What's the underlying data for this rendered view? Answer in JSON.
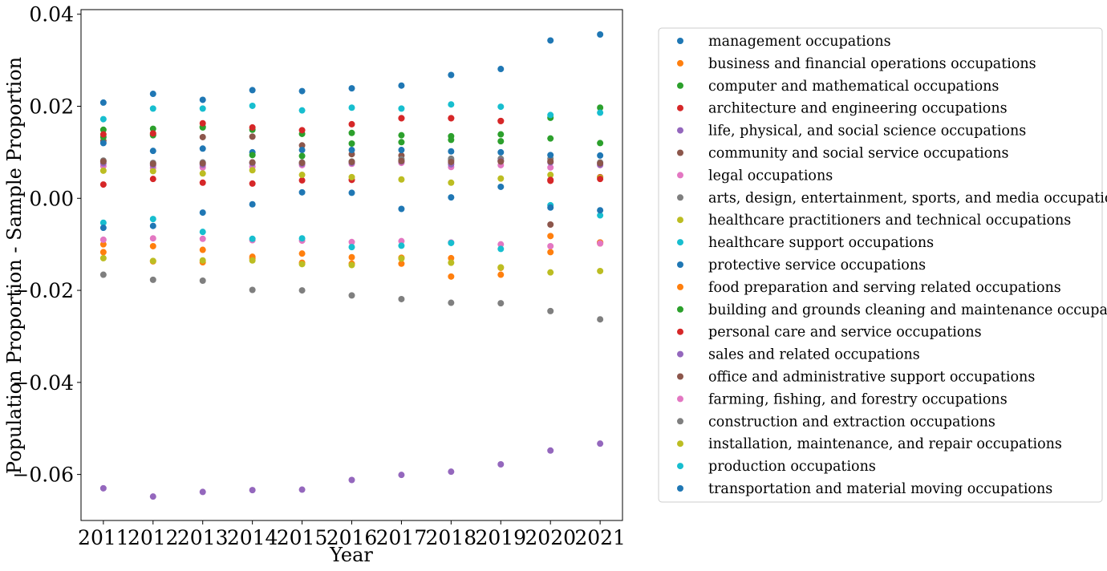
{
  "chart_data": {
    "type": "scatter",
    "title": "",
    "xlabel": "Year",
    "ylabel": "Population Proportion - Sample Proportion",
    "x": [
      2011,
      2012,
      2013,
      2014,
      2015,
      2016,
      2017,
      2018,
      2019,
      2020,
      2021
    ],
    "x_ticks": [
      "2011",
      "2012",
      "2013",
      "2014",
      "2015",
      "2016",
      "2017",
      "2018",
      "2019",
      "2020",
      "2021"
    ],
    "y_ticks": [
      "−0.06",
      "−0.04",
      "−0.02",
      "0.00",
      "0.02",
      "0.04"
    ],
    "y_tick_values": [
      -0.06,
      -0.04,
      -0.02,
      0.0,
      0.02,
      0.04
    ],
    "ylim": [
      -0.07,
      0.041
    ],
    "xlim": [
      2010.55,
      2021.45
    ],
    "grid": false,
    "legend_position": "right (outside plot)",
    "series": [
      {
        "name": "management occupations",
        "color": "#1f77b4",
        "values": [
          0.0208,
          0.0227,
          0.0214,
          0.0235,
          0.0233,
          0.0239,
          0.0245,
          0.0268,
          0.0281,
          0.0343,
          0.0356
        ]
      },
      {
        "name": "business and financial operations occupations",
        "color": "#ff7f0e",
        "values": [
          -0.01,
          -0.0104,
          -0.0112,
          -0.0127,
          -0.012,
          -0.0128,
          -0.0129,
          -0.013,
          -0.0151,
          -0.0082,
          -0.0098
        ]
      },
      {
        "name": "computer and mathematical occupations",
        "color": "#2ca02c",
        "values": [
          0.0149,
          0.0151,
          0.0154,
          0.0149,
          0.014,
          0.0142,
          0.0137,
          0.0135,
          0.0139,
          0.0175,
          0.0197
        ]
      },
      {
        "name": "architecture and engineering occupations",
        "color": "#d62728",
        "values": [
          0.003,
          0.0042,
          0.0034,
          0.0032,
          0.0039,
          0.004,
          0.0174,
          0.0174,
          0.0168,
          0.0038,
          0.0046
        ]
      },
      {
        "name": "life, physical, and social science occupations",
        "color": "#9467bd",
        "values": [
          -0.063,
          -0.0648,
          -0.0638,
          -0.0634,
          -0.0633,
          -0.0612,
          -0.0601,
          -0.0594,
          -0.0578,
          -0.0548,
          -0.0533
        ]
      },
      {
        "name": "community and social service occupations",
        "color": "#8c564b",
        "values": [
          0.0125,
          0.0139,
          0.0133,
          0.0134,
          0.0115,
          0.0096,
          0.0093,
          0.0083,
          0.0082,
          -0.0057,
          -0.0096
        ]
      },
      {
        "name": "legal occupations",
        "color": "#e377c2",
        "values": [
          0.007,
          0.0066,
          0.0067,
          0.0069,
          0.0072,
          0.0075,
          0.0077,
          0.0068,
          0.0072,
          0.0067,
          0.0072
        ]
      },
      {
        "name": "arts, design, entertainment, sports, and media occupations",
        "color": "#7f7f7f",
        "values": [
          0.0082,
          0.0077,
          0.0078,
          0.0078,
          0.0078,
          0.008,
          0.0085,
          0.0086,
          0.0086,
          0.0086,
          0.0078
        ]
      },
      {
        "name": "healthcare practitioners and technical occupations",
        "color": "#bcbd22",
        "values": [
          0.006,
          0.0059,
          0.0054,
          0.0061,
          0.0051,
          0.0046,
          0.0041,
          0.0034,
          0.0043,
          0.0051,
          0.0045
        ]
      },
      {
        "name": "healthcare support occupations",
        "color": "#17becf",
        "values": [
          0.0172,
          0.0195,
          0.0195,
          0.0201,
          0.0191,
          0.0197,
          0.0195,
          0.0204,
          0.0199,
          0.0181,
          0.0186
        ]
      },
      {
        "name": "protective service occupations",
        "color": "#1f77b4",
        "values": [
          0.012,
          0.0103,
          0.0108,
          0.01,
          0.0105,
          0.0105,
          0.0105,
          0.0102,
          0.01,
          0.0094,
          0.0093
        ]
      },
      {
        "name": "food preparation and serving related occupations",
        "color": "#ff7f0e",
        "values": [
          -0.0117,
          -0.0137,
          -0.0139,
          -0.0131,
          -0.014,
          -0.0142,
          -0.0142,
          -0.017,
          -0.0166,
          -0.0117,
          -0.0096
        ]
      },
      {
        "name": "building and grounds cleaning and maintenance occupations",
        "color": "#2ca02c",
        "values": [
          0.0133,
          0.0137,
          0.0155,
          0.0094,
          0.0092,
          0.0119,
          0.0122,
          0.0127,
          0.0124,
          0.013,
          0.012
        ]
      },
      {
        "name": "personal care and service occupations",
        "color": "#d62728",
        "values": [
          0.0139,
          0.0141,
          0.0163,
          0.0154,
          0.0148,
          0.0161,
          0.0174,
          0.0174,
          0.0168,
          0.004,
          0.0042
        ]
      },
      {
        "name": "sales and related occupations",
        "color": "#9467bd",
        "values": [
          0.0076,
          0.0072,
          0.0073,
          0.0076,
          0.0075,
          0.0077,
          0.008,
          0.0074,
          0.0081,
          0.0078,
          0.0073
        ]
      },
      {
        "name": "office and administrative support occupations",
        "color": "#8c564b",
        "values": [
          0.008,
          0.0075,
          0.0076,
          0.0078,
          0.0077,
          0.0079,
          0.0081,
          0.0079,
          0.008,
          0.008,
          0.0076
        ]
      },
      {
        "name": "farming, fishing, and forestry occupations",
        "color": "#e377c2",
        "values": [
          -0.009,
          -0.0087,
          -0.0088,
          -0.0091,
          -0.0092,
          -0.0095,
          -0.0093,
          -0.0096,
          -0.01,
          -0.0104,
          -0.0098
        ]
      },
      {
        "name": "construction and extraction occupations",
        "color": "#7f7f7f",
        "values": [
          -0.0166,
          -0.0177,
          -0.0179,
          -0.0199,
          -0.02,
          -0.0211,
          -0.0219,
          -0.0227,
          -0.0228,
          -0.0245,
          -0.0263
        ]
      },
      {
        "name": "installation, maintenance, and repair occupations",
        "color": "#bcbd22",
        "values": [
          -0.013,
          -0.0136,
          -0.0135,
          -0.0135,
          -0.0143,
          -0.0145,
          -0.0131,
          -0.014,
          -0.015,
          -0.0161,
          -0.0158
        ]
      },
      {
        "name": "production occupations",
        "color": "#17becf",
        "values": [
          -0.0053,
          -0.0045,
          -0.0073,
          -0.0088,
          -0.0087,
          -0.0106,
          -0.0103,
          -0.0097,
          -0.011,
          -0.0015,
          -0.0037
        ]
      },
      {
        "name": "transportation and material moving occupations",
        "color": "#1f77b4",
        "values": [
          -0.0064,
          -0.006,
          -0.0031,
          -0.0013,
          0.0013,
          0.0012,
          -0.0023,
          0.0002,
          0.0025,
          -0.002,
          -0.0026
        ]
      }
    ]
  }
}
